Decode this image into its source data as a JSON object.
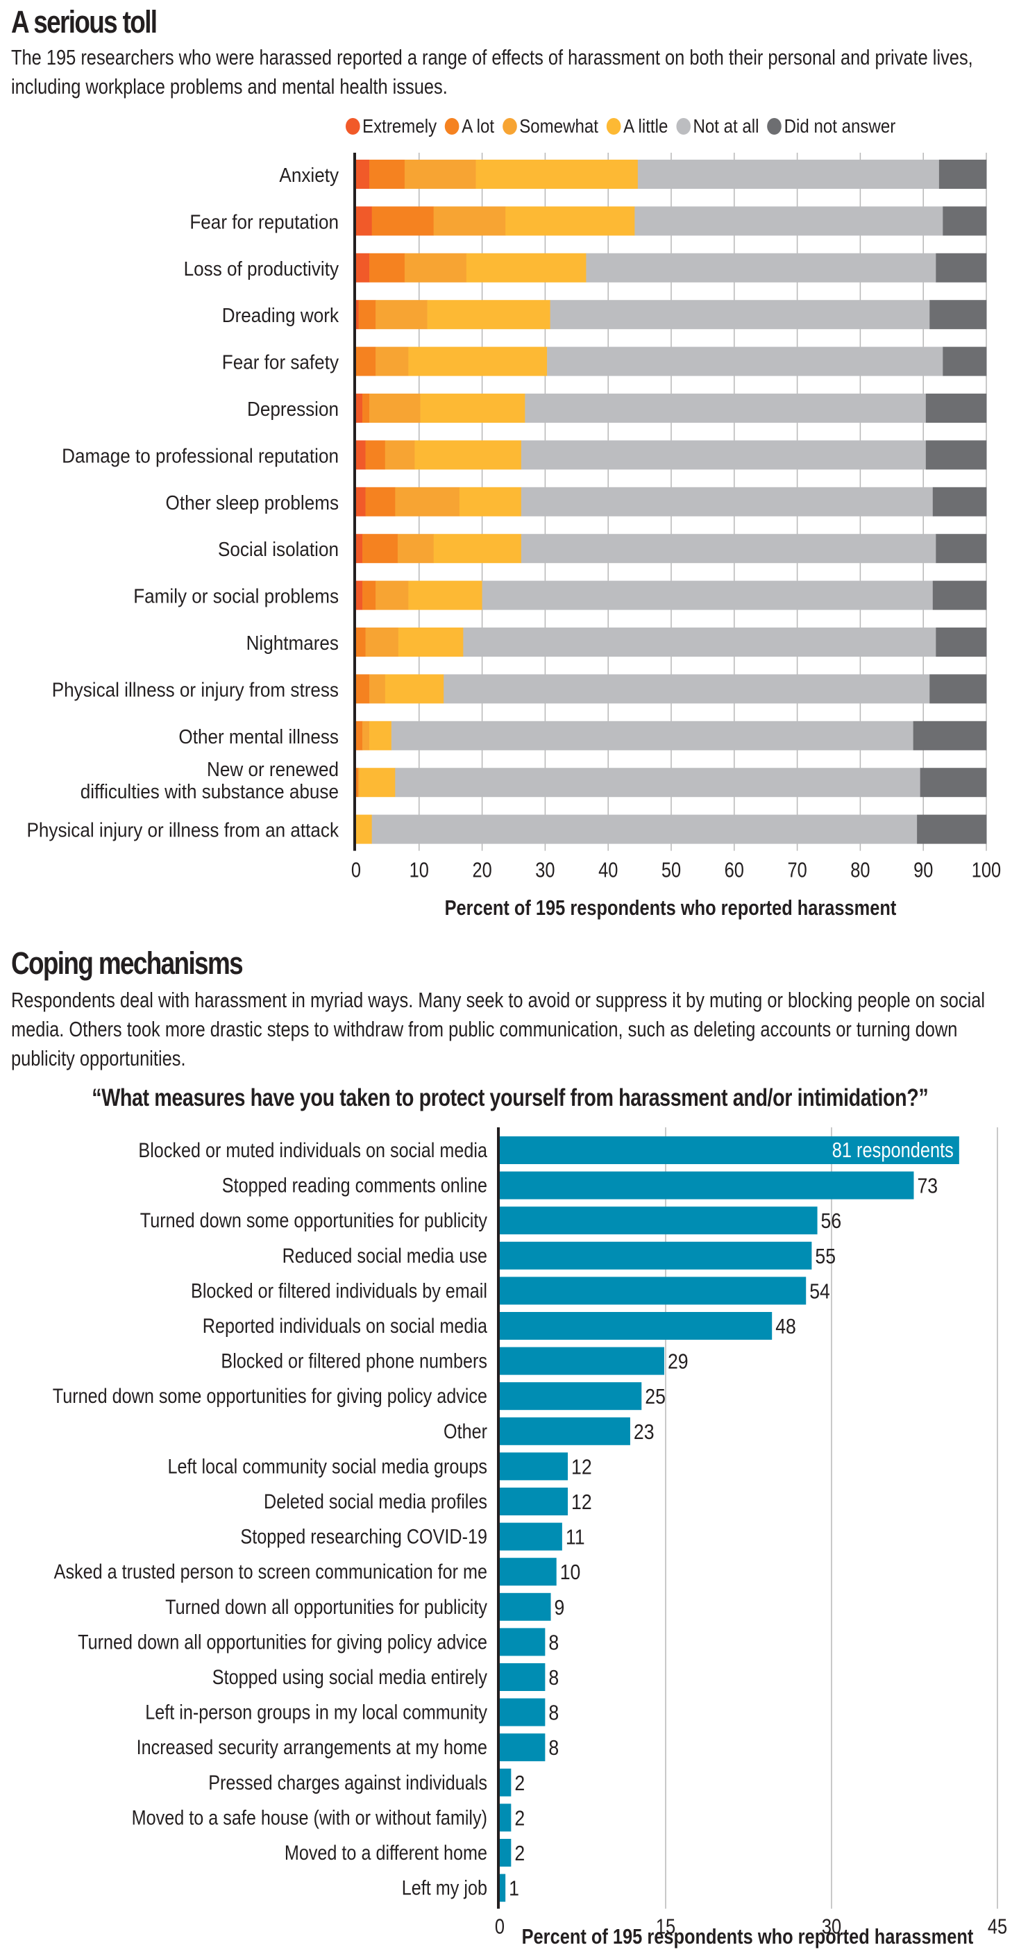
{
  "section1": {
    "title": "A serious toll",
    "description": "The 195 researchers who were harassed reported a range of effects of harassment on both their personal and private lives, including workplace problems and mental health issues."
  },
  "section2": {
    "title": "Coping mechanisms",
    "description": "Respondents deal with harassment in myriad ways. Many seek to avoid or suppress it by muting or blocking people on social media. Others took more drastic steps to withdraw from public communication, such as deleting accounts or turning down publicity opportunities.",
    "question": "“What measures have you taken to protect yourself from harassment and/or intimidation?”"
  },
  "colors": {
    "extremely": "#f15a29",
    "a_lot": "#f58220",
    "somewhat": "#f7a433",
    "a_little": "#fdb934",
    "not_at_all": "#bcbdc0",
    "did_not_answer": "#6d6e71",
    "coping_bar": "#008db3",
    "text": "#231f20",
    "grid": "#b7b7b7"
  },
  "chart_data": [
    {
      "type": "bar",
      "orientation": "horizontal",
      "stacked": true,
      "title": "A serious toll",
      "xlabel": "Percent of 195 respondents who reported harassment",
      "ylabel": "",
      "xlim": [
        0,
        100
      ],
      "xticks": [
        0,
        10,
        20,
        30,
        40,
        50,
        60,
        70,
        80,
        90,
        100
      ],
      "grid": true,
      "legend_position": "top-right",
      "categories": [
        "Anxiety",
        "Fear for reputation",
        "Loss of productivity",
        "Dreading work",
        "Fear for safety",
        "Depression",
        "Damage to professional reputation",
        "Other sleep problems",
        "Social isolation",
        "Family or social problems",
        "Nightmares",
        "Physical illness or injury from stress",
        "Other mental illness",
        "New or renewed\ndifficulties with substance abuse",
        "Physical injury or illness from an attack"
      ],
      "series": [
        {
          "name": "Extremely",
          "color_key": "extremely",
          "values": [
            2.1,
            2.5,
            2.1,
            0.4,
            0.0,
            1.0,
            1.5,
            1.5,
            1.0,
            1.0,
            0.0,
            0.0,
            0.0,
            0.0,
            0.0
          ]
        },
        {
          "name": "A lot",
          "color_key": "a_lot",
          "values": [
            5.6,
            9.8,
            5.6,
            2.7,
            3.1,
            1.1,
            3.1,
            4.7,
            5.6,
            2.1,
            1.5,
            2.1,
            1.0,
            0.3,
            0.0
          ]
        },
        {
          "name": "Somewhat",
          "color_key": "somewhat",
          "values": [
            11.3,
            11.4,
            9.8,
            8.2,
            5.2,
            8.1,
            4.7,
            10.2,
            5.7,
            5.2,
            5.2,
            2.5,
            1.1,
            0.2,
            0.0
          ]
        },
        {
          "name": "A little",
          "color_key": "a_little",
          "values": [
            25.7,
            20.5,
            19.0,
            19.5,
            22.0,
            16.6,
            16.9,
            9.8,
            13.9,
            11.7,
            10.3,
            9.3,
            3.5,
            5.7,
            2.5
          ]
        },
        {
          "name": "Not at all",
          "color_key": "not_at_all",
          "values": [
            47.8,
            48.9,
            55.5,
            60.2,
            62.8,
            63.6,
            64.2,
            65.3,
            65.8,
            71.5,
            75.0,
            77.1,
            82.8,
            83.3,
            86.5
          ]
        },
        {
          "name": "Did not answer",
          "color_key": "did_not_answer",
          "values": [
            7.5,
            6.9,
            8.0,
            9.0,
            6.9,
            9.6,
            9.6,
            8.5,
            8.0,
            8.5,
            8.0,
            9.0,
            11.6,
            10.5,
            11.0
          ]
        }
      ]
    },
    {
      "type": "bar",
      "orientation": "horizontal",
      "title": "What measures have you taken to protect yourself from harassment and/or intimidation?",
      "xlabel": "Percent of 195 respondents who reported harassment",
      "ylabel": "",
      "xlim": [
        0,
        45
      ],
      "xticks": [
        0,
        15,
        30,
        45
      ],
      "grid": true,
      "total_respondents": 195,
      "value_unit": "respondents",
      "first_label_suffix": " respondents",
      "categories": [
        "Blocked or muted individuals on social media",
        "Stopped reading comments online",
        "Turned down some opportunities for publicity",
        "Reduced social media use",
        "Blocked or filtered individuals by email",
        "Reported individuals on social media",
        "Blocked or filtered phone numbers",
        "Turned down some opportunities for giving policy advice",
        "Other",
        "Left local community social media groups",
        "Deleted social media profiles",
        "Stopped researching COVID-19",
        "Asked a trusted person to screen communication for me",
        "Turned down all opportunities for publicity",
        "Turned down all opportunities for giving policy advice",
        "Stopped using social media entirely",
        "Left in-person groups in my local community",
        "Increased security arrangements at my home",
        "Pressed charges against individuals",
        "Moved to a safe house (with or without family)",
        "Moved to a different home",
        "Left my job"
      ],
      "values": [
        81,
        73,
        56,
        55,
        54,
        48,
        29,
        25,
        23,
        12,
        12,
        11,
        10,
        9,
        8,
        8,
        8,
        8,
        2,
        2,
        2,
        1
      ]
    }
  ]
}
